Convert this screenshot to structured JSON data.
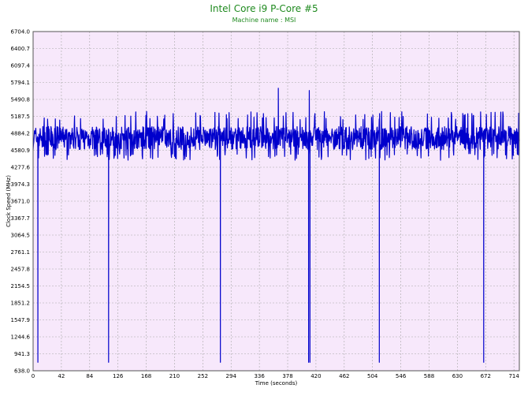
{
  "chart_data": {
    "type": "line",
    "title": "Intel Core i9 P-Core #5",
    "subtitle": "Machine name : MSI",
    "xlabel": "Time (seconds)",
    "ylabel": "Clock Speed (MHz)",
    "xlim": [
      0,
      722
    ],
    "ylim": [
      638.0,
      6704.0
    ],
    "x_ticks": [
      "0",
      "42",
      "84",
      "126",
      "168",
      "210",
      "252",
      "294",
      "336",
      "378",
      "420",
      "462",
      "504",
      "546",
      "588",
      "630",
      "672",
      "714"
    ],
    "y_ticks": [
      "638.0",
      "941.3",
      "1244.6",
      "1547.9",
      "1851.2",
      "2154.5",
      "2457.8",
      "2761.1",
      "3064.5",
      "3367.7",
      "3671.0",
      "3974.3",
      "4277.6",
      "4580.9",
      "4884.2",
      "5187.5",
      "5490.8",
      "5794.1",
      "6097.4",
      "6400.7",
      "6704.0"
    ],
    "grid": true,
    "colors": {
      "plot_bg": "#f7e8fb",
      "line": "#0000cc",
      "grid": "#a8a8a8",
      "title": "#1f8a1f"
    },
    "series": [
      {
        "baseline_mhz": 4800,
        "typical_range_mhz": [
          4450,
          5200
        ],
        "peaks": [
          {
            "x": 364,
            "y": 5690
          },
          {
            "x": 410,
            "y": 5650
          }
        ],
        "dips": [
          {
            "x": 7,
            "y": 790
          },
          {
            "x": 112,
            "y": 790
          },
          {
            "x": 278,
            "y": 790
          },
          {
            "x": 409,
            "y": 790
          },
          {
            "x": 411,
            "y": 790
          },
          {
            "x": 514,
            "y": 790
          },
          {
            "x": 669,
            "y": 790
          }
        ]
      }
    ]
  }
}
